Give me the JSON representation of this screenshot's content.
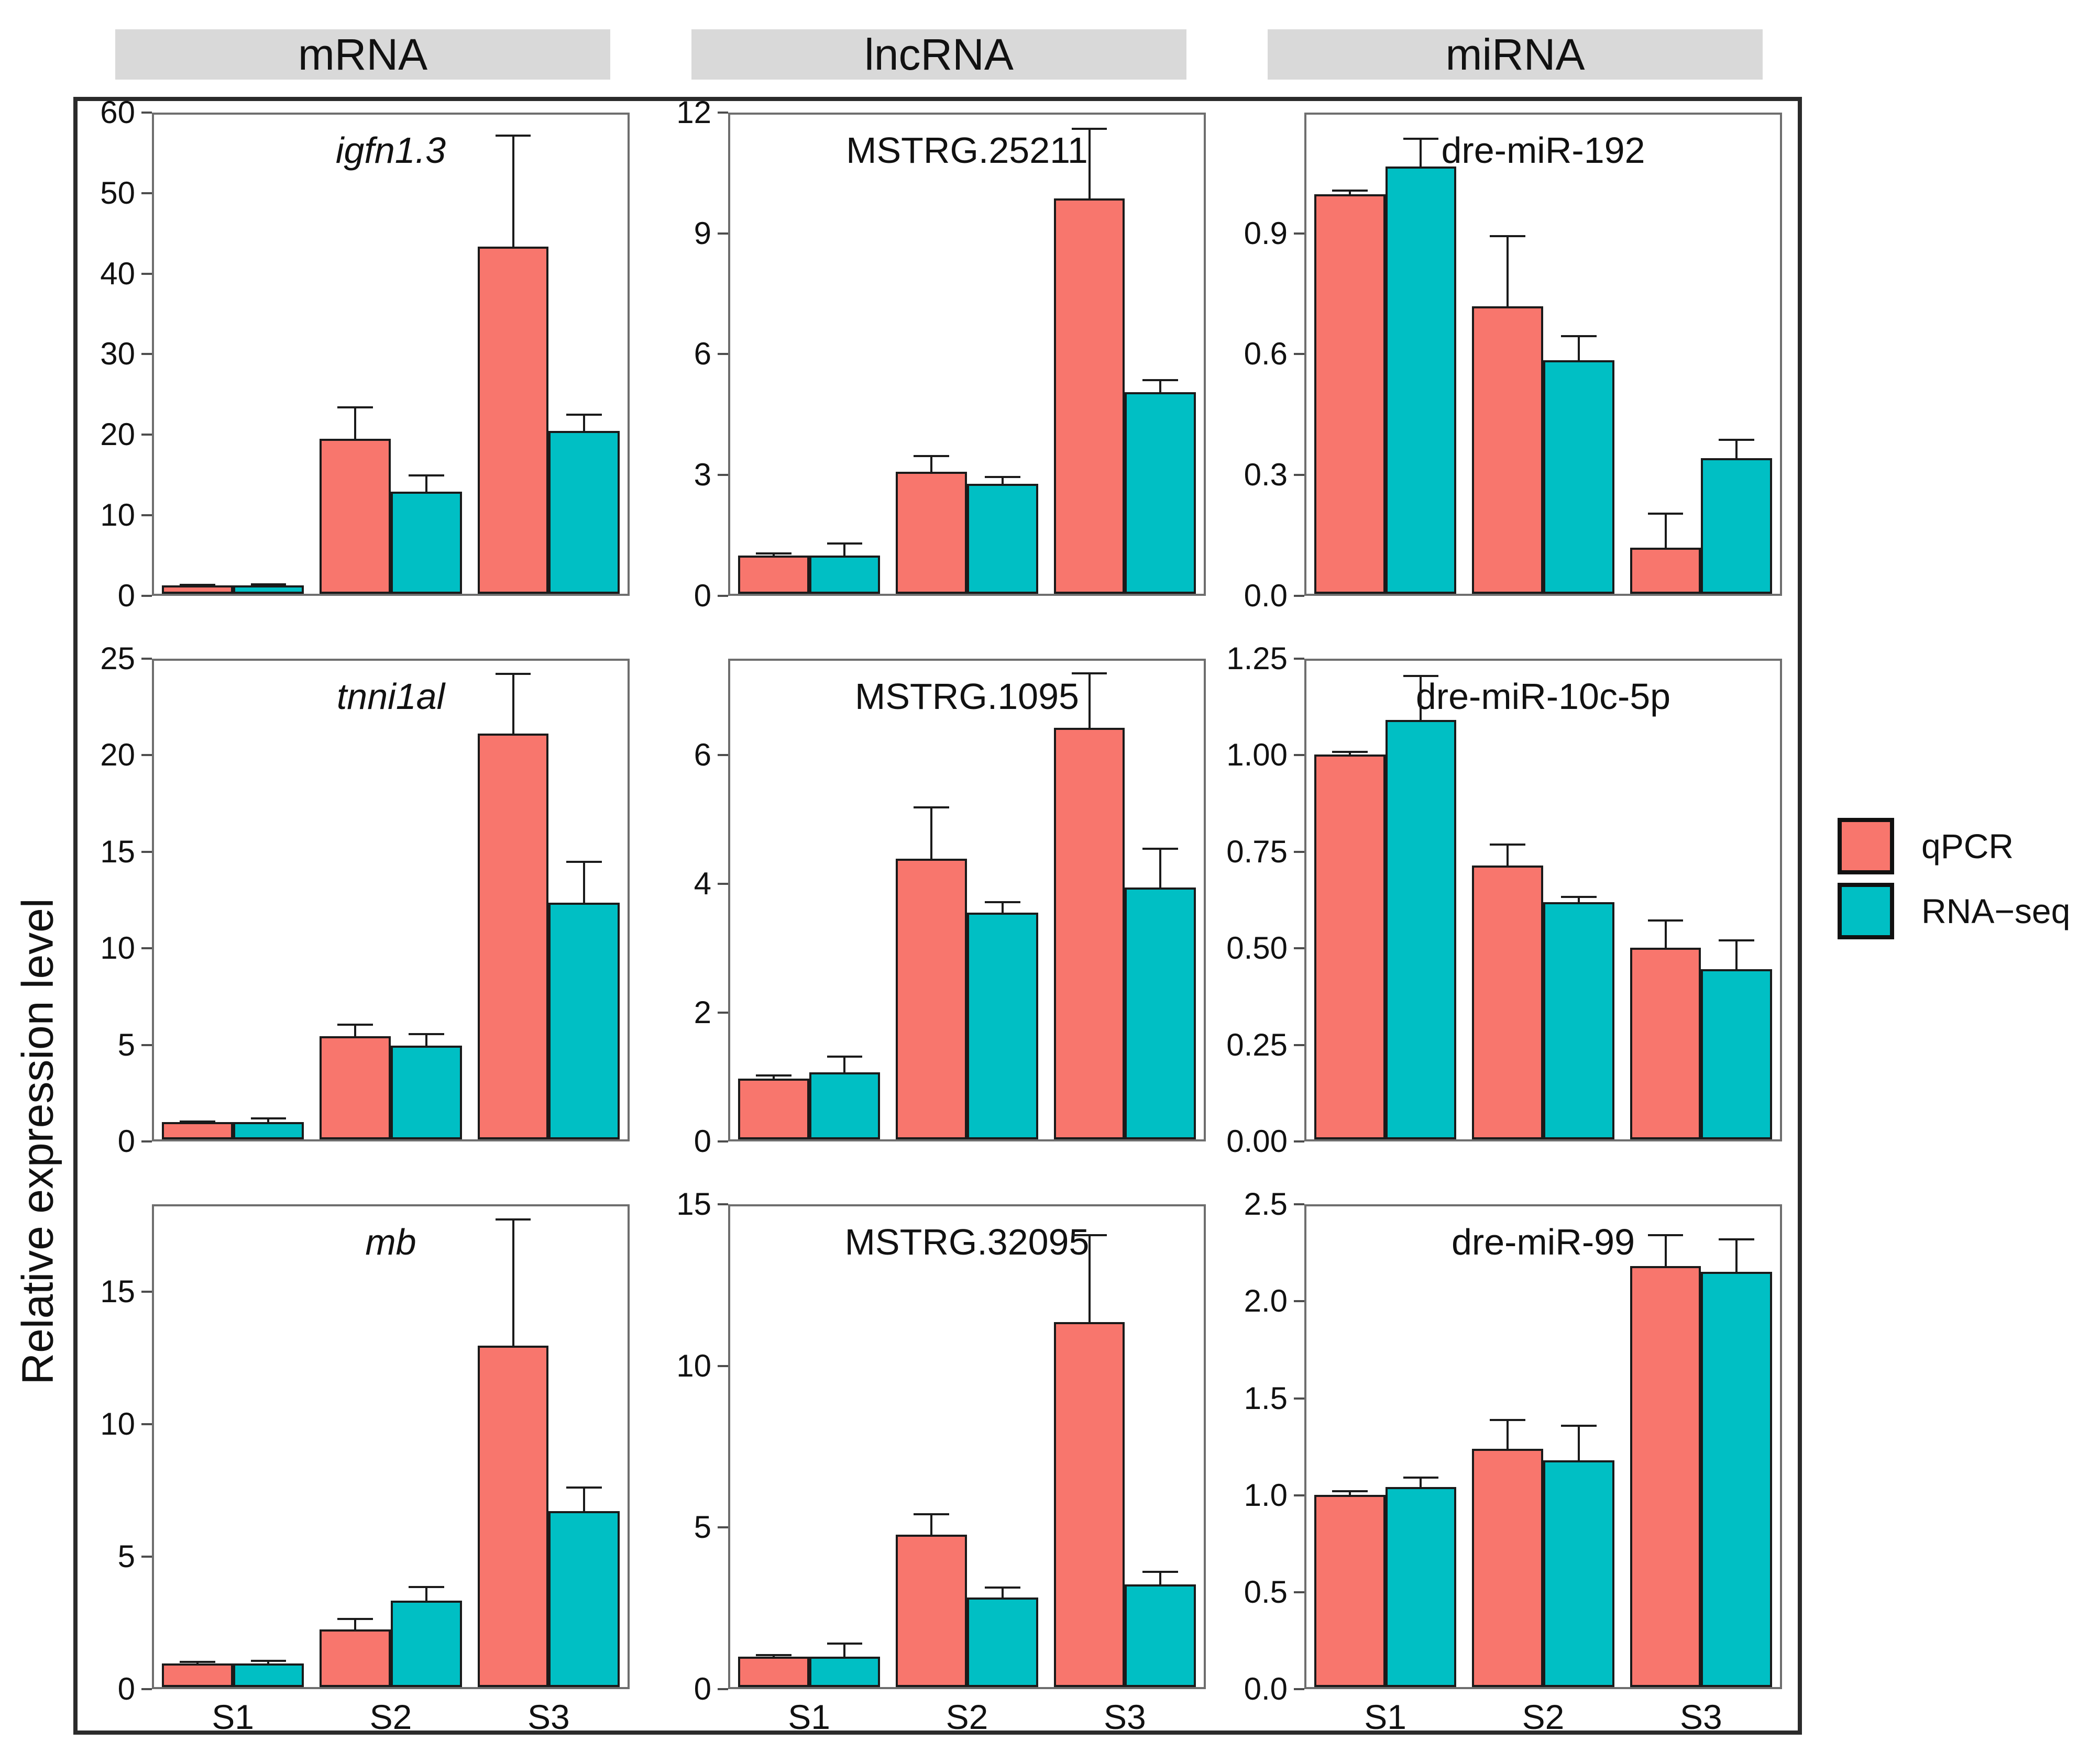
{
  "figure": {
    "y_axis_label": "Relative expression level",
    "column_headers": [
      "mRNA",
      "lncRNA",
      "miRNA"
    ],
    "colors": {
      "qpcr": "#F8766D",
      "rnaseq": "#00BFC4",
      "header_bg": "#d9d9d9",
      "frame": "#2b2b2b",
      "bar_border": "#1a1a1a"
    },
    "legend": [
      {
        "name": "qPCR",
        "color": "#F8766D"
      },
      {
        "name": "RNA−seq",
        "color": "#00BFC4"
      }
    ]
  },
  "chart_data": {
    "type": "bar",
    "categories": [
      "S1",
      "S2",
      "S3"
    ],
    "series_names": [
      "qPCR",
      "RNA-seq"
    ],
    "ylabel": "Relative expression level",
    "legend_position": "right",
    "grid": false,
    "error_bars": "upper",
    "panels": [
      {
        "title": "igfn1.3",
        "italic": true,
        "group": "mRNA",
        "ymax": 60,
        "yticks": [
          {
            "label": "0",
            "value": 0
          },
          {
            "label": "10",
            "value": 10
          },
          {
            "label": "20",
            "value": 20
          },
          {
            "label": "30",
            "value": 30
          },
          {
            "label": "40",
            "value": 40
          },
          {
            "label": "50",
            "value": 50
          },
          {
            "label": "60",
            "value": 60
          }
        ],
        "series": [
          {
            "name": "qPCR",
            "values": [
              1.0,
              19.4,
              43.5
            ],
            "err_top": [
              1.1,
              23.3,
              57.4
            ]
          },
          {
            "name": "RNA-seq",
            "values": [
              1.0,
              12.8,
              20.4
            ],
            "err_top": [
              1.15,
              14.8,
              22.4
            ]
          }
        ]
      },
      {
        "title": "MSTRG.25211",
        "italic": false,
        "group": "lncRNA",
        "ymax": 12,
        "yticks": [
          {
            "label": "0",
            "value": 0
          },
          {
            "label": "3",
            "value": 3
          },
          {
            "label": "6",
            "value": 6
          },
          {
            "label": "9",
            "value": 9
          },
          {
            "label": "12",
            "value": 12
          }
        ],
        "series": [
          {
            "name": "qPCR",
            "values": [
              0.95,
              3.05,
              9.9
            ],
            "err_top": [
              1.0,
              3.45,
              11.65
            ]
          },
          {
            "name": "RNA-seq",
            "values": [
              0.95,
              2.75,
              5.05
            ],
            "err_top": [
              1.25,
              2.92,
              5.35
            ]
          }
        ]
      },
      {
        "title": "dre-miR-192",
        "italic": false,
        "group": "miRNA",
        "ymax": 1.2,
        "yticks": [
          {
            "label": "0.0",
            "value": 0
          },
          {
            "label": "0.3",
            "value": 0.3
          },
          {
            "label": "0.6",
            "value": 0.6
          },
          {
            "label": "0.9",
            "value": 0.9
          }
        ],
        "series": [
          {
            "name": "qPCR",
            "values": [
              1.0,
              0.72,
              0.115
            ],
            "err_top": [
              1.01,
              0.895,
              0.2
            ]
          },
          {
            "name": "RNA-seq",
            "values": [
              1.07,
              0.585,
              0.34
            ],
            "err_top": [
              1.14,
              0.645,
              0.385
            ]
          }
        ]
      },
      {
        "title": "tnni1al",
        "italic": true,
        "group": "mRNA",
        "ymax": 25,
        "yticks": [
          {
            "label": "0",
            "value": 0
          },
          {
            "label": "5",
            "value": 5
          },
          {
            "label": "10",
            "value": 10
          },
          {
            "label": "15",
            "value": 15
          },
          {
            "label": "20",
            "value": 20
          },
          {
            "label": "25",
            "value": 25
          }
        ],
        "series": [
          {
            "name": "qPCR",
            "values": [
              0.9,
              5.4,
              21.2
            ],
            "err_top": [
              0.95,
              6.0,
              24.3
            ]
          },
          {
            "name": "RNA-seq",
            "values": [
              0.9,
              4.9,
              12.35
            ],
            "err_top": [
              1.1,
              5.5,
              14.5
            ]
          }
        ]
      },
      {
        "title": "MSTRG.1095",
        "italic": false,
        "group": "lncRNA",
        "ymax": 7.5,
        "yticks": [
          {
            "label": "0",
            "value": 0
          },
          {
            "label": "2",
            "value": 2
          },
          {
            "label": "4",
            "value": 4
          },
          {
            "label": "6",
            "value": 6
          }
        ],
        "series": [
          {
            "name": "qPCR",
            "values": [
              0.95,
              4.4,
              6.45
            ],
            "err_top": [
              1.0,
              5.2,
              7.3
            ]
          },
          {
            "name": "RNA-seq",
            "values": [
              1.05,
              3.55,
              3.95
            ],
            "err_top": [
              1.3,
              3.72,
              4.55
            ]
          }
        ]
      },
      {
        "title": "dre-miR-10c-5p",
        "italic": false,
        "group": "miRNA",
        "ymax": 1.25,
        "yticks": [
          {
            "label": "0.00",
            "value": 0
          },
          {
            "label": "0.25",
            "value": 0.25
          },
          {
            "label": "0.50",
            "value": 0.5
          },
          {
            "label": "0.75",
            "value": 0.75
          },
          {
            "label": "1.00",
            "value": 1.0
          },
          {
            "label": "1.25",
            "value": 1.25
          }
        ],
        "series": [
          {
            "name": "qPCR",
            "values": [
              1.005,
              0.715,
              0.5
            ],
            "err_top": [
              1.012,
              0.77,
              0.572
            ]
          },
          {
            "name": "RNA-seq",
            "values": [
              1.095,
              0.62,
              0.445
            ],
            "err_top": [
              1.21,
              0.633,
              0.52
            ]
          }
        ]
      },
      {
        "title": "mb",
        "italic": true,
        "group": "mRNA",
        "ymax": 18.3,
        "yticks": [
          {
            "label": "0",
            "value": 0
          },
          {
            "label": "5",
            "value": 5
          },
          {
            "label": "10",
            "value": 10
          },
          {
            "label": "15",
            "value": 15
          }
        ],
        "series": [
          {
            "name": "qPCR",
            "values": [
              0.9,
              2.2,
              13.0
            ],
            "err_top": [
              0.95,
              2.6,
              17.8
            ]
          },
          {
            "name": "RNA-seq",
            "values": [
              0.9,
              3.3,
              6.7
            ],
            "err_top": [
              1.0,
              3.8,
              7.6
            ]
          }
        ]
      },
      {
        "title": "MSTRG.32095",
        "italic": false,
        "group": "lncRNA",
        "ymax": 15,
        "yticks": [
          {
            "label": "0",
            "value": 0
          },
          {
            "label": "5",
            "value": 5
          },
          {
            "label": "10",
            "value": 10
          },
          {
            "label": "15",
            "value": 15
          }
        ],
        "series": [
          {
            "name": "qPCR",
            "values": [
              0.95,
              4.75,
              11.4
            ],
            "err_top": [
              1.0,
              5.4,
              14.1
            ]
          },
          {
            "name": "RNA-seq",
            "values": [
              0.95,
              2.8,
              3.2
            ],
            "err_top": [
              1.35,
              3.1,
              3.6
            ]
          }
        ]
      },
      {
        "title": "dre-miR-99",
        "italic": false,
        "group": "miRNA",
        "ymax": 2.5,
        "yticks": [
          {
            "label": "0.0",
            "value": 0
          },
          {
            "label": "0.5",
            "value": 0.5
          },
          {
            "label": "1.0",
            "value": 1.0
          },
          {
            "label": "1.5",
            "value": 1.5
          },
          {
            "label": "2.0",
            "value": 2.0
          },
          {
            "label": "2.5",
            "value": 2.5
          }
        ],
        "series": [
          {
            "name": "qPCR",
            "values": [
              1.0,
              1.24,
              2.19
            ],
            "err_top": [
              1.02,
              1.39,
              2.35
            ]
          },
          {
            "name": "RNA-seq",
            "values": [
              1.04,
              1.18,
              2.16
            ],
            "err_top": [
              1.09,
              1.36,
              2.33
            ]
          }
        ]
      }
    ]
  }
}
